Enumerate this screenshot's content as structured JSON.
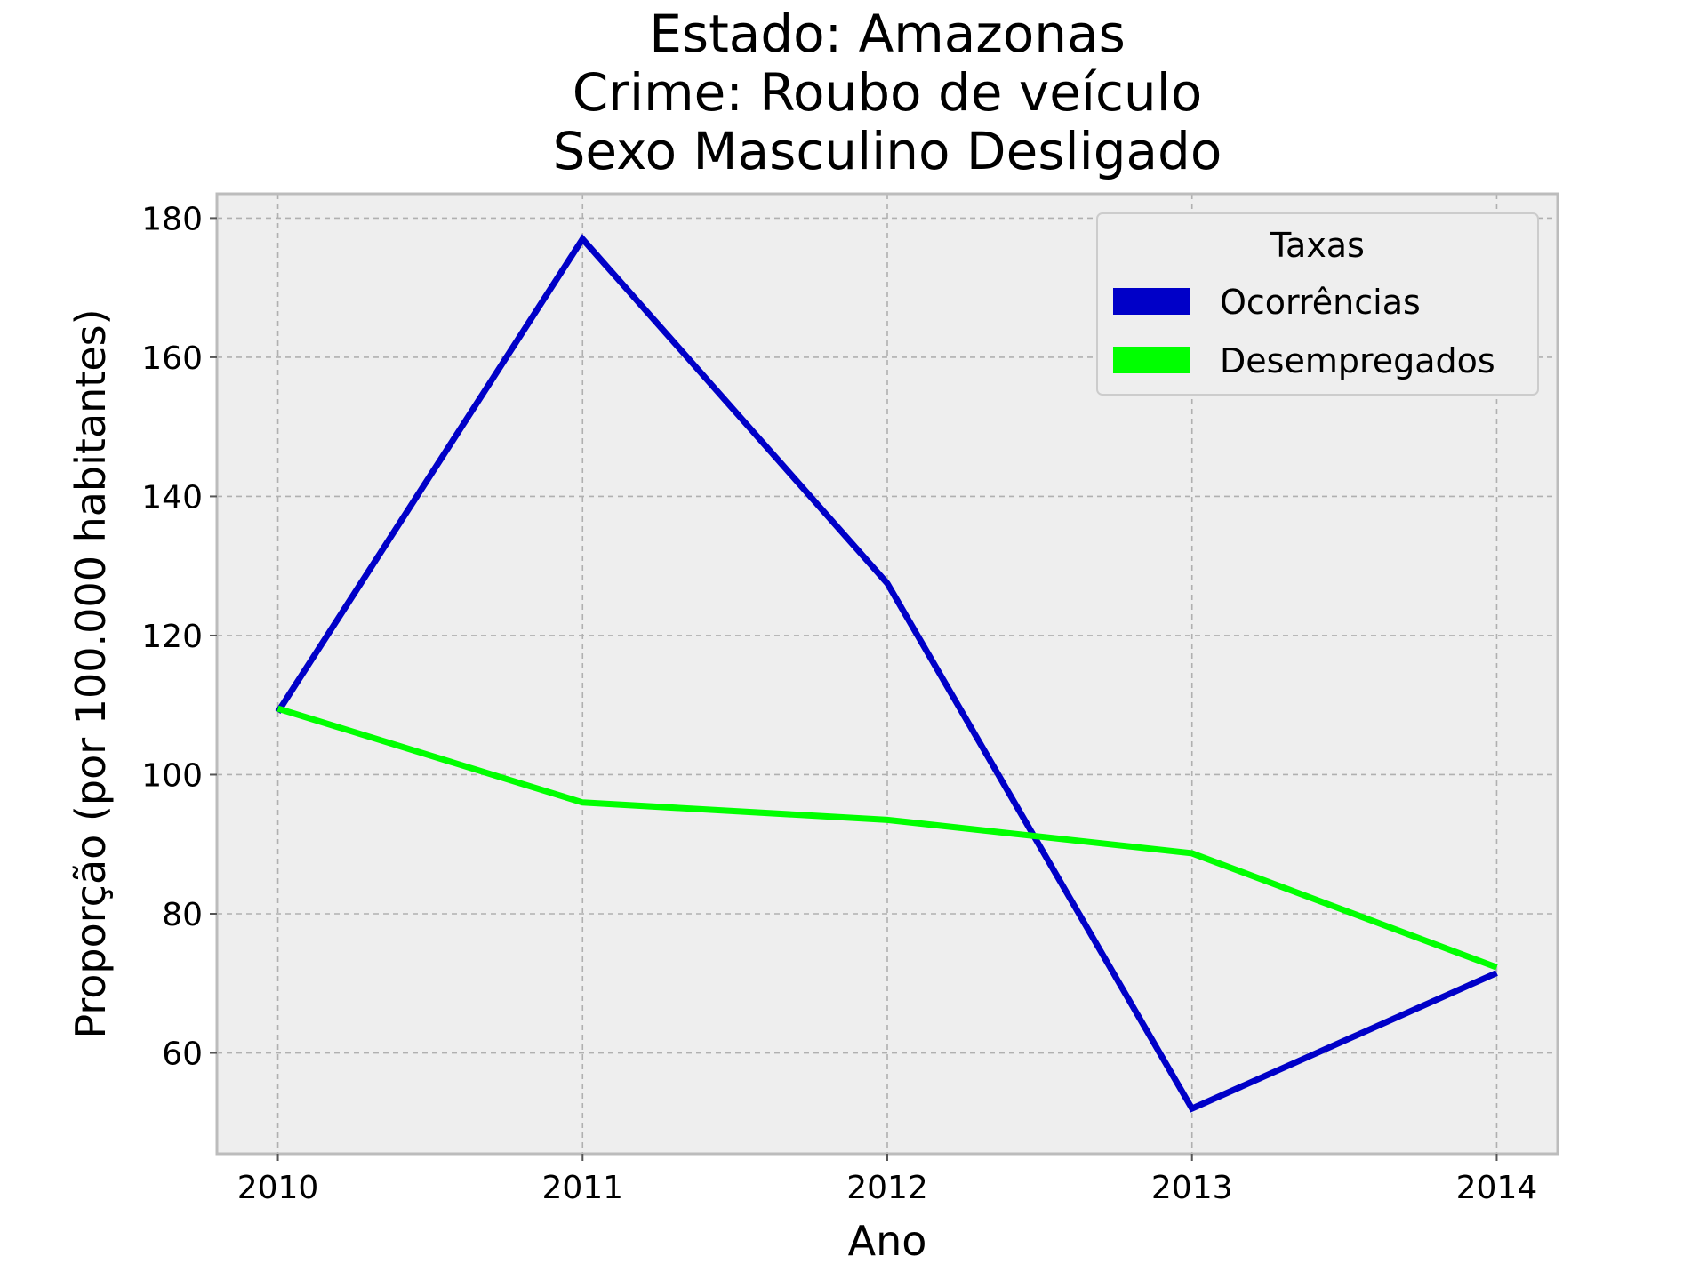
{
  "chart_data": {
    "type": "line",
    "title_lines": [
      "Estado: Amazonas",
      "Crime: Roubo de veículo",
      "Sexo  Masculino   Desligado"
    ],
    "xlabel": "Ano",
    "ylabel": "Proporção (por 100.000 habitantes)",
    "x": [
      2010,
      2011,
      2012,
      2013,
      2014
    ],
    "x_tick_labels": [
      "2010",
      "2011",
      "2012",
      "2013",
      "2014"
    ],
    "y_ticks": [
      60,
      80,
      100,
      120,
      140,
      160,
      180
    ],
    "y_tick_labels": [
      "60",
      "80",
      "100",
      "120",
      "140",
      "160",
      "180"
    ],
    "xlim": [
      2009.8,
      2014.2
    ],
    "ylim": [
      45.5,
      183.5
    ],
    "grid": true,
    "legend": {
      "title": "Taxas",
      "placement": "top-right"
    },
    "series": [
      {
        "name": "Ocorrências",
        "color": "#0000c8",
        "values": [
          109,
          177,
          127.5,
          52,
          71.5
        ]
      },
      {
        "name": "Desempregados",
        "color": "#00ff00",
        "values": [
          109.5,
          96,
          93.5,
          88.7,
          72.3
        ]
      }
    ],
    "plot_background": "#eeeeee"
  }
}
